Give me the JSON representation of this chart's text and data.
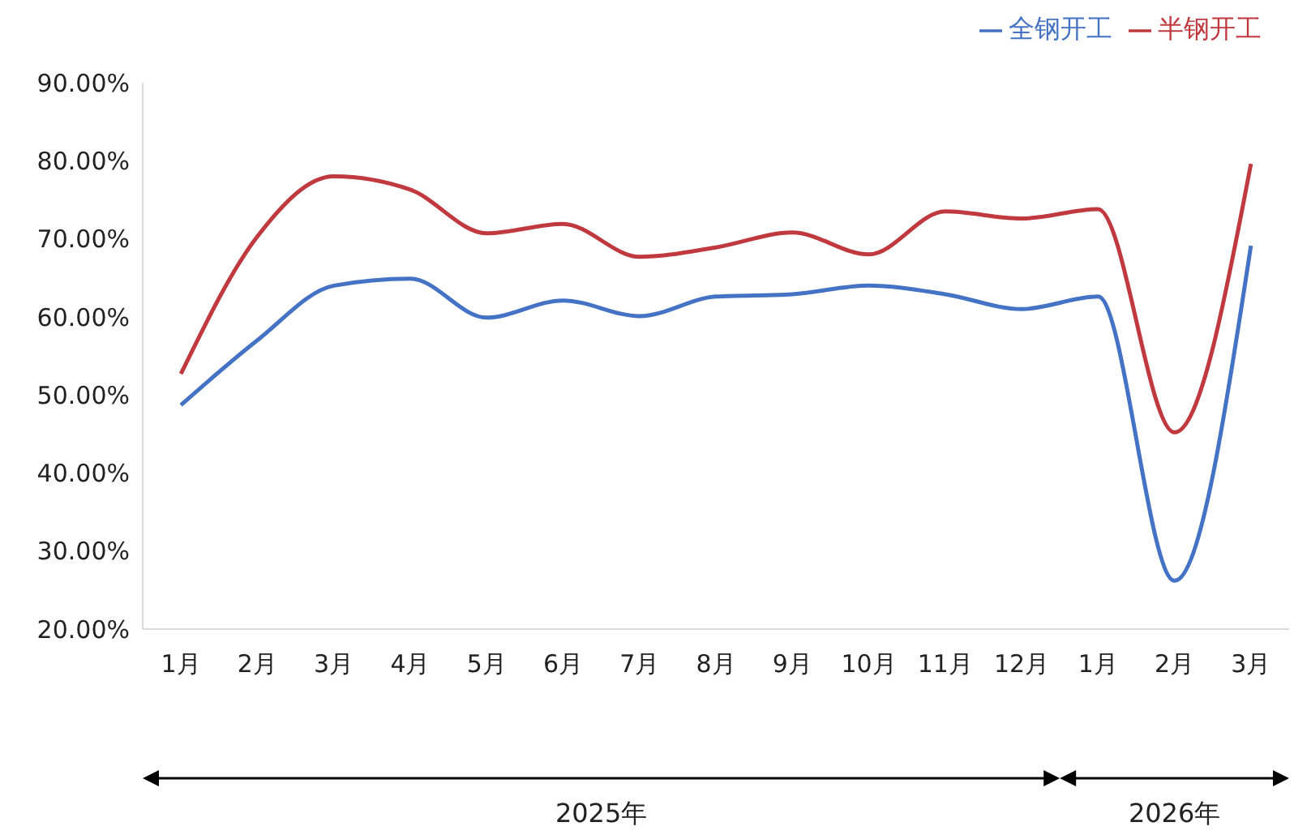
{
  "chart_data": {
    "type": "line",
    "categories": [
      "1月",
      "2月",
      "3月",
      "4月",
      "5月",
      "6月",
      "7月",
      "8月",
      "9月",
      "10月",
      "11月",
      "12月",
      "1月",
      "2月",
      "3月"
    ],
    "series": [
      {
        "name": "全钢开工",
        "color": "#4472c4",
        "values": [
          48.7,
          57.0,
          64.0,
          64.9,
          59.9,
          62.1,
          60.1,
          62.6,
          62.9,
          64.0,
          62.9,
          61.0,
          62.6,
          26.2,
          69.1
        ]
      },
      {
        "name": "半钢开工",
        "color": "#c0393f",
        "values": [
          52.7,
          70.3,
          78.0,
          76.3,
          70.7,
          71.9,
          67.7,
          68.9,
          70.8,
          68.0,
          73.5,
          72.6,
          73.8,
          45.2,
          79.6
        ]
      }
    ],
    "ylim": [
      20,
      90
    ],
    "yticks": [
      {
        "value": 20,
        "label": "20.00%"
      },
      {
        "value": 30,
        "label": "30.00%"
      },
      {
        "value": 40,
        "label": "40.00%"
      },
      {
        "value": 50,
        "label": "50.00%"
      },
      {
        "value": 60,
        "label": "60.00%"
      },
      {
        "value": 70,
        "label": "70.00%"
      },
      {
        "value": 80,
        "label": "80.00%"
      },
      {
        "value": 90,
        "label": "90.00%"
      }
    ],
    "annotations": [
      "2025年",
      "2026年"
    ],
    "legend": "top right",
    "grid": false,
    "marker": "none",
    "line_style": "solid"
  }
}
